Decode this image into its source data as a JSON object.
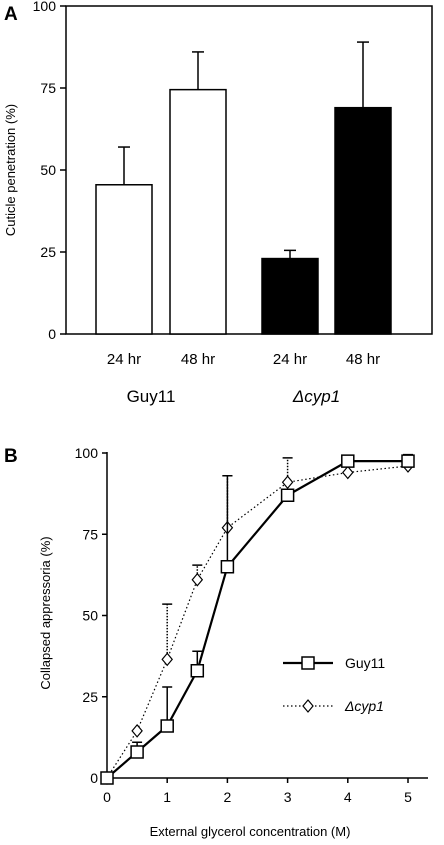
{
  "chart_data": [
    {
      "panel": "A",
      "type": "bar",
      "ylabel": "Cuticle penetration (%)",
      "ylim": [
        0,
        100
      ],
      "yticks": [
        0,
        25,
        50,
        75,
        100
      ],
      "categories": [
        "24 hr",
        "48 hr",
        "24 hr",
        "48 hr"
      ],
      "groups": [
        {
          "label": "Guy11",
          "italic": false,
          "categories": [
            0,
            1
          ]
        },
        {
          "label": "Δcyp1",
          "italic": true,
          "categories": [
            2,
            3
          ]
        }
      ],
      "values": [
        45.5,
        74.5,
        23.0,
        69.0
      ],
      "errors": [
        11.5,
        11.5,
        2.5,
        20.0
      ],
      "bar_fill": [
        "white",
        "white",
        "black",
        "black"
      ],
      "grid": false
    },
    {
      "panel": "B",
      "type": "line",
      "ylabel": "Collapsed appressoria (%)",
      "xlabel": "External glycerol concentration (M)",
      "xlim": [
        0,
        5
      ],
      "ylim": [
        0,
        100
      ],
      "xticks": [
        0,
        1,
        2,
        3,
        4,
        5
      ],
      "yticks": [
        0,
        25,
        50,
        75,
        100
      ],
      "legend_position": "lower-right",
      "grid": false,
      "series": [
        {
          "name": "Guy11",
          "italic": false,
          "marker": "square",
          "line": "solid",
          "x": [
            0,
            0.5,
            1,
            1.5,
            2,
            3,
            4,
            5
          ],
          "y": [
            0,
            8,
            16,
            33,
            65,
            87,
            97.5,
            97.5
          ],
          "err": [
            0,
            3,
            12,
            6,
            28,
            0,
            0,
            2
          ]
        },
        {
          "name": "Δcyp1",
          "italic": true,
          "marker": "diamond",
          "line": "dotted",
          "x": [
            0,
            0.5,
            1,
            1.5,
            2,
            3,
            4,
            5
          ],
          "y": [
            0,
            14.5,
            36.5,
            61,
            77,
            91,
            94,
            96
          ],
          "err": [
            0,
            0,
            17,
            4.5,
            16,
            7.5,
            0,
            0
          ]
        }
      ]
    }
  ]
}
